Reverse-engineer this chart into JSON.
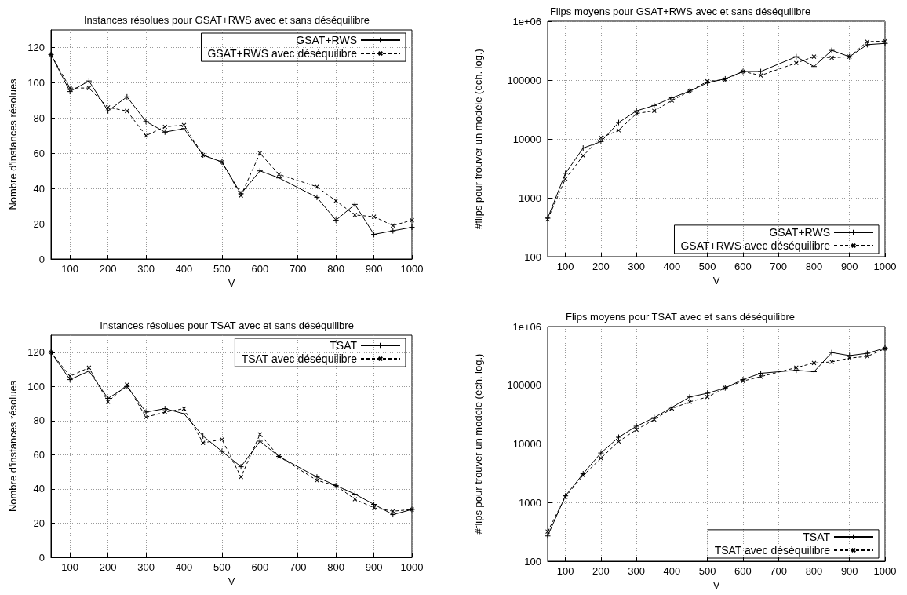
{
  "chart_data": [
    {
      "type": "line",
      "title": "Instances résolues pour GSAT+RWS avec et sans déséquilibre",
      "xlabel": "V",
      "ylabel": "Nombre d'instances résolues",
      "x": [
        50,
        100,
        150,
        200,
        250,
        300,
        350,
        400,
        450,
        500,
        550,
        600,
        650,
        750,
        800,
        850,
        900,
        950,
        1000
      ],
      "series": [
        {
          "name": "GSAT+RWS",
          "color": "#000000",
          "line_style": "solid",
          "values": [
            116,
            95,
            101,
            84,
            92,
            78,
            72,
            74,
            59,
            55,
            37,
            50,
            46,
            35,
            22,
            31,
            14,
            16,
            18
          ]
        },
        {
          "name": "GSAT+RWS avec déséquilibre",
          "color": "#000000",
          "line_style": "dashed",
          "values": [
            116,
            97,
            97,
            86,
            84,
            70,
            75,
            76,
            59,
            55,
            36,
            60,
            48,
            41,
            33,
            25,
            24,
            19,
            22
          ]
        }
      ],
      "xlim": [
        50,
        1000
      ],
      "xticks": [
        100,
        200,
        300,
        400,
        500,
        600,
        700,
        800,
        900,
        1000
      ],
      "ylim": [
        0,
        130
      ],
      "yticks": [
        0,
        20,
        40,
        60,
        80,
        100,
        120
      ],
      "grid": true,
      "legend": "top right",
      "marker": "cross"
    },
    {
      "type": "line",
      "title": "Flips moyens pour GSAT+RWS avec et sans déséquilibre",
      "xlabel": "V",
      "ylabel": "#flips pour trouver un modèle (éch. log.)",
      "x": [
        50,
        100,
        150,
        200,
        250,
        300,
        350,
        400,
        450,
        500,
        550,
        600,
        650,
        750,
        800,
        850,
        900,
        950,
        1000
      ],
      "series": [
        {
          "name": "GSAT+RWS",
          "color": "#000000",
          "line_style": "solid",
          "values": [
            450,
            2600,
            7000,
            9000,
            19000,
            30000,
            37000,
            50000,
            65000,
            90000,
            105000,
            140000,
            140000,
            250000,
            170000,
            320000,
            250000,
            400000,
            420000
          ]
        },
        {
          "name": "GSAT+RWS avec déséquilibre",
          "color": "#000000",
          "line_style": "dashed",
          "values": [
            430,
            2100,
            5200,
            10500,
            14000,
            27000,
            30000,
            45000,
            65000,
            95000,
            102000,
            140000,
            120000,
            195000,
            250000,
            240000,
            250000,
            450000,
            460000
          ]
        }
      ],
      "xlim": [
        50,
        1000
      ],
      "xticks": [
        100,
        200,
        300,
        400,
        500,
        600,
        700,
        800,
        900,
        1000
      ],
      "ylim": [
        100,
        1000000
      ],
      "yticks": [
        100,
        1000,
        10000,
        100000,
        {
          "value": 1000000,
          "label": "1e+06"
        }
      ],
      "log": "y",
      "grid": true,
      "legend": "bottom right",
      "marker": "cross"
    },
    {
      "type": "line",
      "title": "Instances résolues pour TSAT avec et sans déséquilibre",
      "xlabel": "V",
      "ylabel": "Nombre d'instances résolues",
      "x": [
        50,
        100,
        150,
        200,
        250,
        300,
        350,
        400,
        450,
        500,
        550,
        600,
        650,
        750,
        800,
        850,
        900,
        950,
        1000
      ],
      "series": [
        {
          "name": "TSAT",
          "color": "#000000",
          "line_style": "solid",
          "values": [
            120,
            104,
            109,
            93,
            100,
            85,
            87,
            84,
            71,
            62,
            53,
            68,
            59,
            47,
            42,
            37,
            31,
            25,
            28
          ]
        },
        {
          "name": "TSAT avec déséquilibre",
          "color": "#000000",
          "line_style": "dashed",
          "values": [
            120,
            106,
            111,
            91,
            101,
            82,
            85,
            87,
            67,
            69,
            47,
            72,
            59,
            45,
            42,
            34,
            29,
            27,
            28
          ]
        }
      ],
      "xlim": [
        50,
        1000
      ],
      "xticks": [
        100,
        200,
        300,
        400,
        500,
        600,
        700,
        800,
        900,
        1000
      ],
      "ylim": [
        0,
        130
      ],
      "yticks": [
        0,
        20,
        40,
        60,
        80,
        100,
        120
      ],
      "grid": true,
      "legend": "top right",
      "marker": "cross"
    },
    {
      "type": "line",
      "title": "Flips moyens pour TSAT avec et sans déséquilibre",
      "xlabel": "V",
      "ylabel": "#flips pour trouver un modèle (éch. log.)",
      "x": [
        50,
        100,
        150,
        200,
        250,
        300,
        350,
        400,
        450,
        500,
        550,
        600,
        650,
        750,
        800,
        850,
        900,
        950,
        1000
      ],
      "series": [
        {
          "name": "TSAT",
          "color": "#000000",
          "line_style": "solid",
          "values": [
            270,
            1300,
            3100,
            7000,
            13000,
            20000,
            28000,
            42000,
            63000,
            73000,
            90000,
            125000,
            160000,
            180000,
            170000,
            360000,
            320000,
            350000,
            430000
          ]
        },
        {
          "name": "TSAT avec déséquilibre",
          "color": "#000000",
          "line_style": "dashed",
          "values": [
            320,
            1250,
            2900,
            5700,
            11000,
            17500,
            26000,
            40000,
            52000,
            63000,
            90000,
            118000,
            140000,
            200000,
            240000,
            250000,
            290000,
            310000,
            420000
          ]
        }
      ],
      "xlim": [
        50,
        1000
      ],
      "xticks": [
        100,
        200,
        300,
        400,
        500,
        600,
        700,
        800,
        900,
        1000
      ],
      "ylim": [
        100,
        1000000
      ],
      "yticks": [
        100,
        1000,
        10000,
        100000,
        {
          "value": 1000000,
          "label": "1e+06"
        }
      ],
      "log": "y",
      "grid": true,
      "legend": "bottom right",
      "marker": "cross"
    }
  ]
}
